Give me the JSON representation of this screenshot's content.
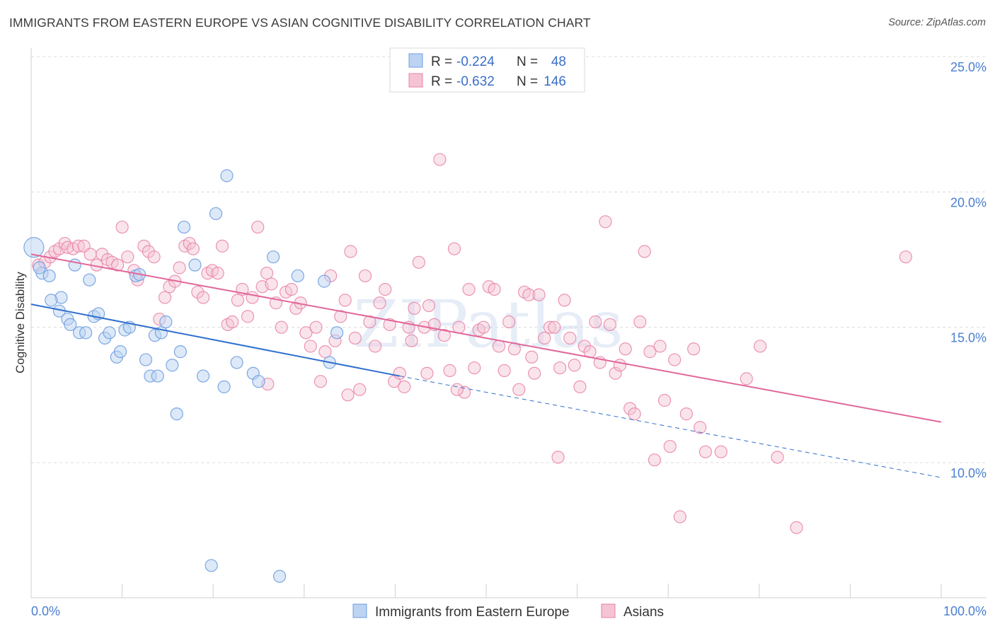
{
  "title": "IMMIGRANTS FROM EASTERN EUROPE VS ASIAN COGNITIVE DISABILITY CORRELATION CHART",
  "source": "Source: ZipAtlas.com",
  "watermark": "ZIPatlas",
  "colors": {
    "blue": "#6f9fe0",
    "blue_fill": "#bcd3f2",
    "blue_line": "#2f6fce",
    "pink": "#e882a6",
    "pink_fill": "#f5c3d4",
    "pink_line": "#e0679a",
    "tick_label": "#4a7fd0",
    "grid": "#dcdcdc"
  },
  "legend": {
    "r_label": "R =",
    "n_label": "N =",
    "items": [
      {
        "r": "-0.224",
        "n": "48"
      },
      {
        "r": "-0.632",
        "n": "146"
      }
    ]
  },
  "chart_data": {
    "type": "scatter",
    "ylabel": "Cognitive Disability",
    "xlim": [
      0,
      100
    ],
    "ylim": [
      5.5,
      26
    ],
    "x_ticks": [
      "0.0%",
      "100.0%"
    ],
    "y_ticks": [
      {
        "v": 10,
        "label": "10.0%"
      },
      {
        "v": 15,
        "label": "15.0%"
      },
      {
        "v": 20,
        "label": "20.0%"
      },
      {
        "v": 25,
        "label": "25.0%"
      }
    ],
    "series": [
      {
        "name": "Immigrants from Eastern Europe",
        "trend": {
          "x0": 0,
          "y0": 15.85,
          "x1": 40.5,
          "y1": 13.2,
          "dash_to_x": 100,
          "dash_to_y": 9.45
        },
        "points": [
          [
            0.3,
            17.95,
            1
          ],
          [
            1.2,
            17.0,
            0
          ],
          [
            2.0,
            16.9,
            0
          ],
          [
            3.3,
            16.1,
            0
          ],
          [
            2.2,
            16.0,
            0
          ],
          [
            4.8,
            17.3,
            0
          ],
          [
            6.4,
            16.75,
            0
          ],
          [
            3.1,
            15.6,
            0
          ],
          [
            4.0,
            15.3,
            0
          ],
          [
            4.3,
            15.1,
            0
          ],
          [
            5.3,
            14.8,
            0
          ],
          [
            6.0,
            14.8,
            0
          ],
          [
            6.9,
            15.4,
            0
          ],
          [
            7.4,
            15.5,
            0
          ],
          [
            8.1,
            14.6,
            0
          ],
          [
            8.6,
            14.8,
            0
          ],
          [
            9.4,
            13.9,
            0
          ],
          [
            9.8,
            14.1,
            0
          ],
          [
            10.3,
            14.9,
            0
          ],
          [
            10.8,
            15.0,
            0
          ],
          [
            11.5,
            16.9,
            0
          ],
          [
            11.9,
            16.95,
            0
          ],
          [
            12.6,
            13.8,
            0
          ],
          [
            13.1,
            13.2,
            0
          ],
          [
            13.6,
            14.7,
            0
          ],
          [
            13.9,
            13.2,
            0
          ],
          [
            14.3,
            14.8,
            0
          ],
          [
            14.8,
            15.2,
            0
          ],
          [
            15.5,
            13.6,
            0
          ],
          [
            16.0,
            11.8,
            0
          ],
          [
            16.4,
            14.1,
            0
          ],
          [
            16.8,
            18.7,
            0
          ],
          [
            18.0,
            17.3,
            0
          ],
          [
            18.9,
            13.2,
            0
          ],
          [
            19.8,
            6.2,
            0
          ],
          [
            20.3,
            19.2,
            0
          ],
          [
            21.2,
            12.8,
            0
          ],
          [
            21.5,
            20.6,
            0
          ],
          [
            22.6,
            13.7,
            0
          ],
          [
            24.4,
            13.3,
            0
          ],
          [
            25.0,
            13.0,
            0
          ],
          [
            26.6,
            17.6,
            0
          ],
          [
            27.3,
            5.8,
            0
          ],
          [
            29.3,
            16.9,
            0
          ],
          [
            32.2,
            16.7,
            0
          ],
          [
            32.8,
            13.7,
            0
          ],
          [
            33.6,
            14.8,
            0
          ],
          [
            0.9,
            17.2,
            0
          ]
        ]
      },
      {
        "name": "Asians",
        "trend": {
          "x0": 0,
          "y0": 17.7,
          "x1": 100,
          "y1": 11.5
        },
        "points": [
          [
            0.8,
            17.3
          ],
          [
            1.5,
            17.4
          ],
          [
            2.1,
            17.6
          ],
          [
            2.6,
            17.8
          ],
          [
            3.1,
            17.9
          ],
          [
            3.7,
            18.1
          ],
          [
            4.0,
            17.95
          ],
          [
            4.6,
            17.9
          ],
          [
            5.2,
            18.0
          ],
          [
            5.8,
            18.0
          ],
          [
            6.5,
            17.7
          ],
          [
            7.2,
            17.3
          ],
          [
            7.8,
            17.7
          ],
          [
            8.4,
            17.5
          ],
          [
            8.9,
            17.4
          ],
          [
            9.5,
            17.3
          ],
          [
            10.0,
            18.7
          ],
          [
            10.6,
            17.6
          ],
          [
            11.3,
            17.1
          ],
          [
            11.7,
            16.75
          ],
          [
            12.4,
            18.0
          ],
          [
            12.9,
            17.8
          ],
          [
            13.5,
            17.6
          ],
          [
            14.1,
            15.3
          ],
          [
            14.7,
            16.1
          ],
          [
            15.2,
            16.5
          ],
          [
            15.8,
            16.7
          ],
          [
            16.3,
            17.2
          ],
          [
            16.9,
            18.0
          ],
          [
            17.4,
            18.1
          ],
          [
            17.8,
            17.9
          ],
          [
            18.3,
            16.3
          ],
          [
            18.9,
            16.1
          ],
          [
            19.4,
            17.0
          ],
          [
            19.9,
            17.1
          ],
          [
            20.5,
            17.0
          ],
          [
            21.0,
            18.0
          ],
          [
            21.6,
            15.1
          ],
          [
            22.1,
            15.2
          ],
          [
            22.7,
            16.0
          ],
          [
            23.2,
            16.4
          ],
          [
            23.8,
            15.4
          ],
          [
            24.3,
            16.1
          ],
          [
            24.9,
            18.7
          ],
          [
            25.4,
            16.5
          ],
          [
            25.9,
            17.0
          ],
          [
            26.4,
            16.6
          ],
          [
            26.9,
            15.9
          ],
          [
            27.5,
            15.0
          ],
          [
            28.0,
            16.3
          ],
          [
            28.6,
            16.4
          ],
          [
            29.1,
            15.7
          ],
          [
            29.6,
            15.9
          ],
          [
            30.2,
            14.8
          ],
          [
            30.7,
            14.3
          ],
          [
            31.3,
            15.0
          ],
          [
            31.8,
            13.0
          ],
          [
            32.3,
            14.1
          ],
          [
            32.9,
            16.9
          ],
          [
            33.4,
            14.5
          ],
          [
            34.0,
            15.4
          ],
          [
            34.5,
            16.0
          ],
          [
            35.1,
            17.8
          ],
          [
            35.6,
            14.6
          ],
          [
            36.1,
            12.7
          ],
          [
            36.7,
            16.9
          ],
          [
            37.2,
            15.2
          ],
          [
            37.8,
            14.3
          ],
          [
            38.3,
            15.9
          ],
          [
            38.9,
            16.4
          ],
          [
            39.4,
            15.1
          ],
          [
            39.9,
            13.0
          ],
          [
            40.5,
            13.3
          ],
          [
            41.0,
            12.8
          ],
          [
            41.5,
            15.0
          ],
          [
            42.1,
            15.7
          ],
          [
            42.6,
            17.4
          ],
          [
            43.2,
            15.0
          ],
          [
            43.7,
            15.8
          ],
          [
            44.3,
            15.1
          ],
          [
            44.9,
            21.2
          ],
          [
            45.4,
            14.7
          ],
          [
            46.0,
            13.4
          ],
          [
            46.5,
            17.9
          ],
          [
            47.0,
            15.0
          ],
          [
            47.6,
            12.6
          ],
          [
            48.1,
            16.4
          ],
          [
            48.7,
            13.5
          ],
          [
            49.2,
            14.9
          ],
          [
            49.7,
            15.0
          ],
          [
            50.3,
            16.5
          ],
          [
            50.9,
            16.4
          ],
          [
            51.4,
            14.3
          ],
          [
            52.0,
            13.4
          ],
          [
            52.5,
            15.2
          ],
          [
            53.1,
            14.2
          ],
          [
            53.6,
            12.7
          ],
          [
            54.2,
            16.3
          ],
          [
            54.7,
            16.2
          ],
          [
            55.3,
            13.3
          ],
          [
            55.8,
            16.2
          ],
          [
            56.4,
            14.6
          ],
          [
            57.0,
            15.0
          ],
          [
            57.5,
            15.0
          ],
          [
            58.1,
            13.5
          ],
          [
            58.6,
            16.0
          ],
          [
            59.2,
            14.6
          ],
          [
            59.7,
            13.6
          ],
          [
            60.3,
            12.8
          ],
          [
            60.8,
            14.3
          ],
          [
            61.4,
            14.1
          ],
          [
            62.0,
            15.2
          ],
          [
            62.5,
            13.7
          ],
          [
            63.1,
            18.9
          ],
          [
            63.6,
            15.1
          ],
          [
            64.2,
            13.3
          ],
          [
            64.7,
            13.6
          ],
          [
            65.3,
            14.2
          ],
          [
            65.8,
            12.0
          ],
          [
            66.3,
            11.8
          ],
          [
            66.9,
            15.2
          ],
          [
            67.4,
            17.8
          ],
          [
            68.0,
            14.1
          ],
          [
            68.5,
            10.1
          ],
          [
            69.1,
            14.3
          ],
          [
            69.6,
            12.3
          ],
          [
            70.2,
            10.6
          ],
          [
            70.7,
            13.8
          ],
          [
            71.3,
            8.0
          ],
          [
            72.0,
            11.8
          ],
          [
            74.1,
            10.4
          ],
          [
            75.8,
            10.4
          ],
          [
            78.6,
            13.1
          ],
          [
            80.1,
            14.3
          ],
          [
            82.0,
            10.2
          ],
          [
            84.1,
            7.6
          ],
          [
            96.1,
            17.6
          ],
          [
            57.9,
            10.2
          ],
          [
            72.8,
            14.2
          ],
          [
            73.5,
            11.3
          ],
          [
            55.0,
            13.9
          ],
          [
            46.8,
            12.7
          ],
          [
            41.8,
            14.5
          ],
          [
            43.5,
            13.3
          ],
          [
            26.0,
            12.9
          ],
          [
            34.8,
            12.5
          ]
        ]
      }
    ],
    "bottom_legend": [
      "Immigrants from Eastern Europe",
      "Asians"
    ]
  }
}
